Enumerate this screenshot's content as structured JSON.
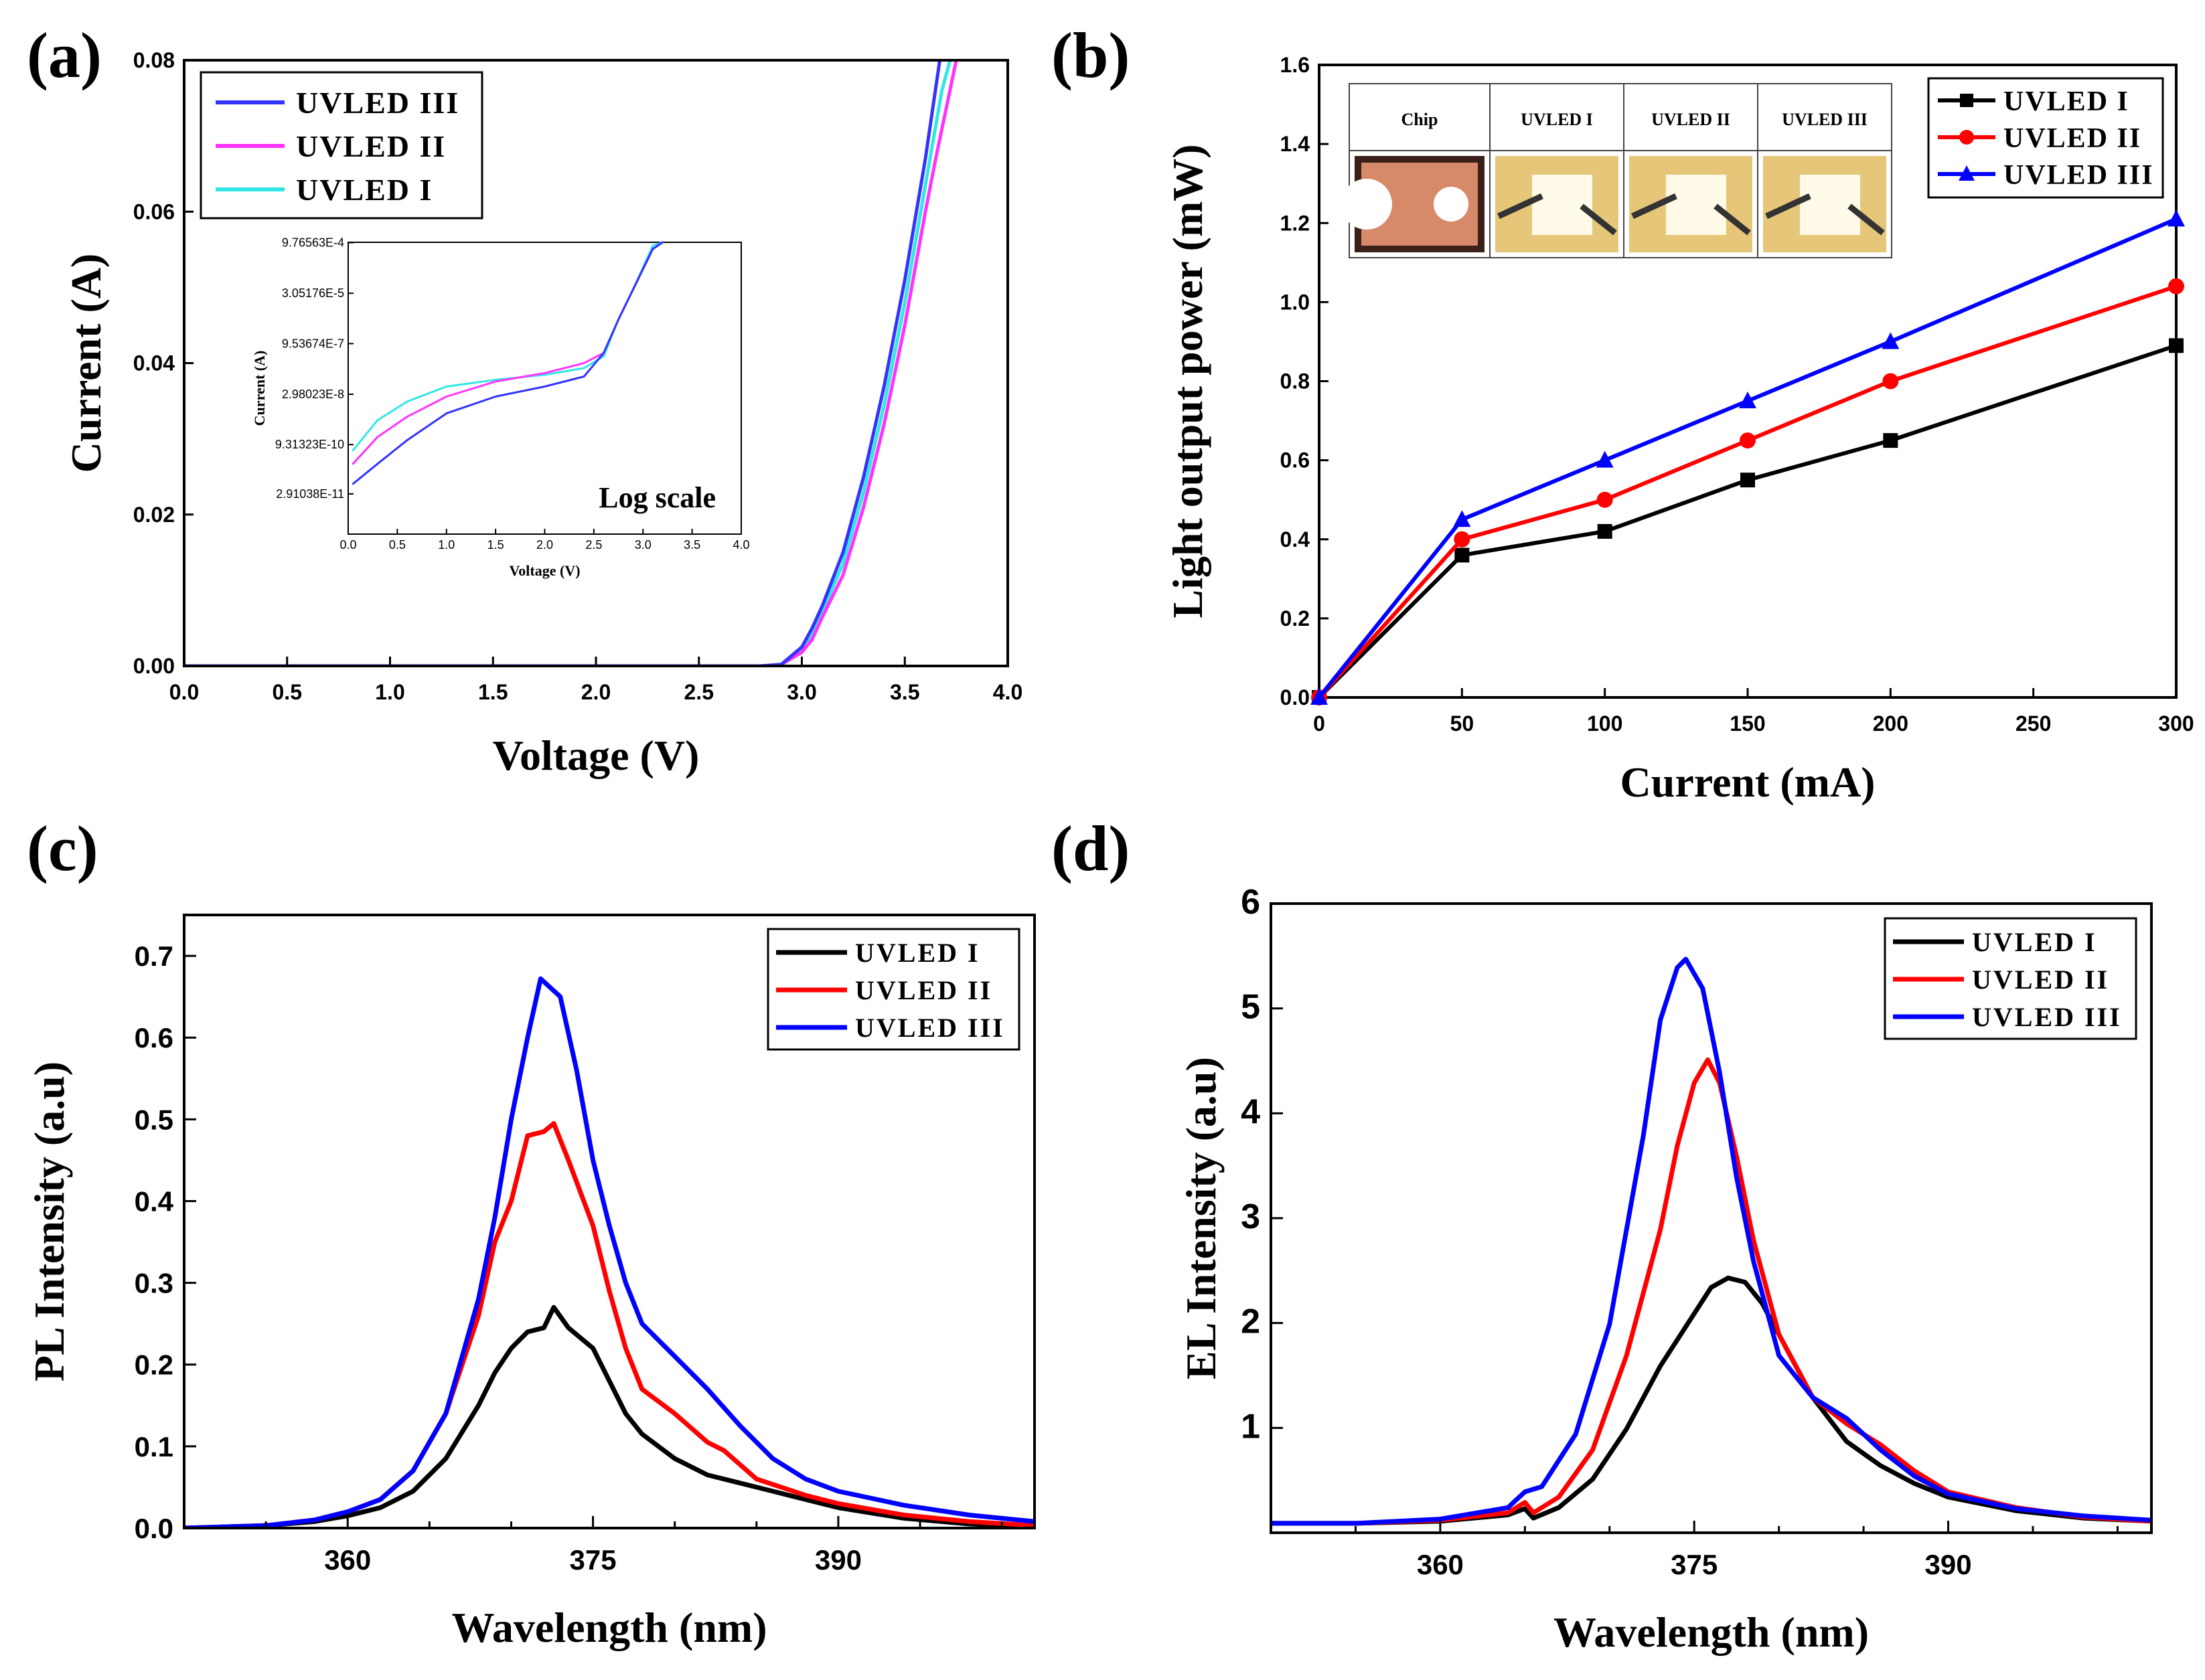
{
  "colors": {
    "uvled1_a": "#33e6e6",
    "uvled2_a": "#ff33ff",
    "uvled3_a": "#3333ff",
    "uvled1": "#000000",
    "uvled2": "#ff0000",
    "uvled3": "#0000ff"
  },
  "chart_data": [
    {
      "id": "a",
      "panel_label": "(a)",
      "type": "line",
      "xlabel": "Voltage (V)",
      "ylabel": "Current (A)",
      "xlim": [
        0,
        4.0
      ],
      "ylim": [
        0,
        0.08
      ],
      "x_ticks": [
        "0.0",
        "0.5",
        "1.0",
        "1.5",
        "2.0",
        "2.5",
        "3.0",
        "3.5",
        "4.0"
      ],
      "y_ticks": [
        "0.00",
        "0.02",
        "0.04",
        "0.06",
        "0.08"
      ],
      "legend": [
        "UVLED III",
        "UVLED II",
        "UVLED I"
      ],
      "legend_position": "top-left",
      "series": [
        {
          "name": "UVLED III",
          "x": [
            0,
            2.8,
            2.9,
            3.0,
            3.05,
            3.1,
            3.2,
            3.3,
            3.4,
            3.5,
            3.6,
            3.67
          ],
          "y": [
            0,
            0,
            0.0002,
            0.0025,
            0.005,
            0.008,
            0.015,
            0.025,
            0.037,
            0.051,
            0.067,
            0.08
          ]
        },
        {
          "name": "UVLED II",
          "x": [
            0,
            2.8,
            2.9,
            3.0,
            3.05,
            3.1,
            3.2,
            3.3,
            3.4,
            3.5,
            3.6,
            3.65,
            3.75
          ],
          "y": [
            0,
            0,
            0.0002,
            0.0018,
            0.0035,
            0.0065,
            0.012,
            0.021,
            0.032,
            0.045,
            0.06,
            0.067,
            0.08
          ]
        },
        {
          "name": "UVLED I",
          "x": [
            0,
            2.8,
            2.9,
            3.0,
            3.05,
            3.1,
            3.2,
            3.3,
            3.4,
            3.5,
            3.6,
            3.68,
            3.72
          ],
          "y": [
            0,
            0,
            0.0002,
            0.002,
            0.004,
            0.0072,
            0.0135,
            0.023,
            0.0345,
            0.048,
            0.0635,
            0.076,
            0.08
          ]
        }
      ],
      "inset": {
        "label": "Log scale",
        "xlabel": "Voltage (V)",
        "ylabel": "Current (A)",
        "xlim": [
          0,
          4.0
        ],
        "ylim": [
          -11.7,
          -3.0
        ],
        "x_ticks": [
          "0.0",
          "0.5",
          "1.0",
          "1.5",
          "2.0",
          "2.5",
          "3.0",
          "3.5",
          "4.0"
        ],
        "y_ticks": [
          "2.91038E-11",
          "9.31323E-10",
          "2.98023E-8",
          "9.53674E-7",
          "3.05176E-5",
          "9.76563E-4"
        ],
        "series": [
          {
            "name": "UVLED III",
            "x": [
              0.05,
              0.3,
              0.6,
              1.0,
              1.5,
              2.0,
              2.4,
              2.6,
              2.75,
              2.9,
              3.1,
              3.2
            ],
            "y": [
              -10.2,
              -9.6,
              -8.9,
              -8.1,
              -7.6,
              -7.3,
              -7.0,
              -6.3,
              -5.3,
              -4.4,
              -3.2,
              -3.0
            ]
          },
          {
            "name": "UVLED II",
            "x": [
              0.05,
              0.3,
              0.6,
              1.0,
              1.5,
              2.0,
              2.4,
              2.6,
              2.75,
              2.9,
              3.1,
              3.2
            ],
            "y": [
              -9.6,
              -8.8,
              -8.2,
              -7.6,
              -7.15,
              -6.9,
              -6.6,
              -6.3,
              -5.3,
              -4.4,
              -3.2,
              -3.0
            ]
          },
          {
            "name": "UVLED I",
            "x": [
              0.05,
              0.3,
              0.6,
              1.0,
              1.5,
              2.0,
              2.4,
              2.6,
              2.75,
              2.9,
              3.1,
              3.2
            ],
            "y": [
              -9.2,
              -8.3,
              -7.75,
              -7.3,
              -7.1,
              -6.95,
              -6.75,
              -6.4,
              -5.3,
              -4.4,
              -3.1,
              -3.0
            ]
          }
        ]
      }
    },
    {
      "id": "b",
      "panel_label": "(b)",
      "type": "line",
      "xlabel": "Current (mA)",
      "ylabel": "Light output power (mW)",
      "xlim": [
        0,
        300
      ],
      "ylim": [
        0,
        1.6
      ],
      "x_ticks": [
        "0",
        "50",
        "100",
        "150",
        "200",
        "250",
        "300"
      ],
      "y_ticks": [
        "0.0",
        "0.2",
        "0.4",
        "0.6",
        "0.8",
        "1.0",
        "1.2",
        "1.4",
        "1.6"
      ],
      "legend": [
        "UVLED I",
        "UVLED II",
        "UVLED III"
      ],
      "legend_position": "top-right",
      "markers": [
        "square",
        "circle",
        "triangle"
      ],
      "series": [
        {
          "name": "UVLED I",
          "x": [
            0,
            50,
            100,
            150,
            200,
            300
          ],
          "y": [
            0.0,
            0.36,
            0.42,
            0.55,
            0.65,
            0.89
          ]
        },
        {
          "name": "UVLED II",
          "x": [
            0,
            50,
            100,
            150,
            200,
            300
          ],
          "y": [
            0.0,
            0.4,
            0.5,
            0.65,
            0.8,
            1.04
          ]
        },
        {
          "name": "UVLED III",
          "x": [
            0,
            50,
            100,
            150,
            200,
            300
          ],
          "y": [
            0.0,
            0.45,
            0.6,
            0.75,
            0.9,
            1.21
          ]
        }
      ],
      "photo_inset": {
        "headers": [
          "Chip",
          "UVLED I",
          "UVLED II",
          "UVLED III"
        ]
      }
    },
    {
      "id": "c",
      "panel_label": "(c)",
      "type": "line",
      "xlabel": "Wavelength (nm)",
      "ylabel": "PL Intensity (a.u)",
      "xlim": [
        350,
        402
      ],
      "ylim": [
        0,
        0.75
      ],
      "x_tick_values": [
        360,
        375,
        390
      ],
      "x_ticks": [
        "360",
        "375",
        "390"
      ],
      "y_tick_values": [
        0.0,
        0.1,
        0.2,
        0.3,
        0.4,
        0.5,
        0.6,
        0.7
      ],
      "y_ticks": [
        "0.0",
        "0.1",
        "0.2",
        "0.3",
        "0.4",
        "0.5",
        "0.6",
        "0.7"
      ],
      "legend": [
        "UVLED I",
        "UVLED II",
        "UVLED III"
      ],
      "legend_position": "top-right",
      "series": [
        {
          "name": "UVLED I",
          "x": [
            350,
            355,
            358,
            360,
            362,
            364,
            366,
            368,
            369,
            370,
            371,
            372,
            372.6,
            373.5,
            375,
            376,
            377,
            378,
            380,
            382,
            384,
            386,
            388,
            390,
            394,
            398,
            402
          ],
          "y": [
            0.0,
            0.003,
            0.008,
            0.015,
            0.025,
            0.045,
            0.085,
            0.15,
            0.19,
            0.22,
            0.24,
            0.245,
            0.27,
            0.245,
            0.22,
            0.18,
            0.14,
            0.115,
            0.085,
            0.065,
            0.055,
            0.045,
            0.035,
            0.025,
            0.012,
            0.005,
            0.002
          ]
        },
        {
          "name": "UVLED II",
          "x": [
            350,
            355,
            358,
            360,
            362,
            364,
            366,
            368,
            369,
            370,
            371,
            372,
            372.6,
            373.5,
            375,
            376,
            377,
            378,
            380,
            382,
            383,
            385,
            388,
            390,
            394,
            398,
            402
          ],
          "y": [
            0.0,
            0.003,
            0.01,
            0.02,
            0.035,
            0.07,
            0.14,
            0.26,
            0.35,
            0.4,
            0.48,
            0.485,
            0.495,
            0.45,
            0.37,
            0.29,
            0.22,
            0.17,
            0.14,
            0.105,
            0.095,
            0.06,
            0.04,
            0.03,
            0.016,
            0.008,
            0.003
          ]
        },
        {
          "name": "UVLED III",
          "x": [
            350,
            355,
            358,
            360,
            362,
            364,
            366,
            368,
            369,
            370,
            371,
            371.8,
            373,
            374,
            375,
            376,
            377,
            378,
            380,
            382,
            384,
            386,
            388,
            390,
            394,
            398,
            402
          ],
          "y": [
            0.0,
            0.003,
            0.01,
            0.02,
            0.035,
            0.07,
            0.14,
            0.28,
            0.38,
            0.5,
            0.6,
            0.672,
            0.65,
            0.56,
            0.45,
            0.37,
            0.3,
            0.25,
            0.21,
            0.17,
            0.125,
            0.085,
            0.06,
            0.045,
            0.028,
            0.016,
            0.008
          ]
        }
      ]
    },
    {
      "id": "d",
      "panel_label": "(d)",
      "type": "line",
      "xlabel": "Wavelength (nm)",
      "ylabel": "EL Intensity (a.u)",
      "xlim": [
        350,
        402
      ],
      "ylim": [
        0,
        6
      ],
      "x_tick_values": [
        360,
        375,
        390
      ],
      "x_ticks": [
        "360",
        "375",
        "390"
      ],
      "y_tick_values": [
        1,
        2,
        3,
        4,
        5,
        6
      ],
      "y_ticks": [
        "1",
        "2",
        "3",
        "4",
        "5",
        "6"
      ],
      "legend": [
        "UVLED I",
        "UVLED II",
        "UVLED III"
      ],
      "legend_position": "top-right",
      "series": [
        {
          "name": "UVLED I",
          "x": [
            350,
            355,
            360,
            364,
            365,
            365.5,
            367,
            369,
            371,
            373,
            375,
            376,
            377,
            378,
            379,
            380,
            382,
            384,
            386,
            388,
            390,
            394,
            398,
            402
          ],
          "y": [
            0.0,
            0.0,
            0.02,
            0.08,
            0.14,
            0.05,
            0.15,
            0.42,
            0.9,
            1.5,
            2.0,
            2.25,
            2.34,
            2.3,
            2.1,
            1.8,
            1.2,
            0.78,
            0.55,
            0.38,
            0.25,
            0.12,
            0.05,
            0.02
          ]
        },
        {
          "name": "UVLED II",
          "x": [
            350,
            355,
            360,
            364,
            365,
            365.5,
            367,
            369,
            371,
            373,
            374,
            375,
            375.8,
            376.5,
            377.5,
            378.5,
            380,
            382,
            384,
            386,
            388,
            390,
            394,
            398,
            402
          ],
          "y": [
            0.0,
            0.0,
            0.03,
            0.1,
            0.2,
            0.1,
            0.25,
            0.7,
            1.6,
            2.8,
            3.6,
            4.2,
            4.42,
            4.2,
            3.5,
            2.7,
            1.8,
            1.2,
            0.95,
            0.75,
            0.5,
            0.3,
            0.15,
            0.06,
            0.02
          ]
        },
        {
          "name": "UVLED III",
          "x": [
            350,
            355,
            360,
            364,
            365,
            366,
            368,
            370,
            372,
            373,
            374,
            374.5,
            375.5,
            376.5,
            377.5,
            378.5,
            380,
            382,
            384,
            386,
            388,
            390,
            394,
            398,
            402
          ],
          "y": [
            0.0,
            0.0,
            0.04,
            0.15,
            0.3,
            0.35,
            0.85,
            1.9,
            3.7,
            4.8,
            5.3,
            5.38,
            5.1,
            4.3,
            3.3,
            2.5,
            1.6,
            1.2,
            1.0,
            0.7,
            0.45,
            0.28,
            0.14,
            0.07,
            0.03
          ]
        }
      ]
    }
  ]
}
